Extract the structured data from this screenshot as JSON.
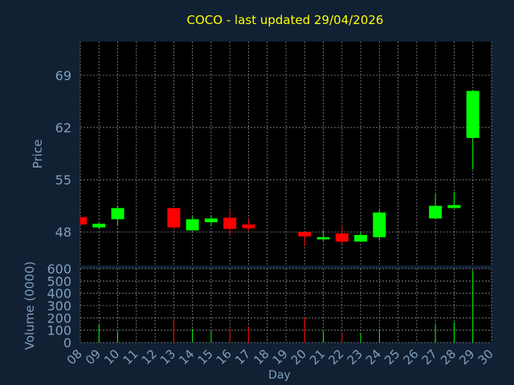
{
  "colors": {
    "background": "#112033",
    "plot_background": "#000000",
    "grid": "#8a8a8a",
    "axis_text": "#7f9fc0",
    "title": "#ffff00",
    "up": "#00ff00",
    "down": "#ff0000"
  },
  "chart_data": [
    {
      "type": "candlestick",
      "title": "COCO - last updated 29/04/2026",
      "ylabel": "Price",
      "ylim": [
        43.5,
        73.5
      ],
      "yticks": [
        48,
        55,
        62,
        69
      ],
      "x_categories": [
        "08",
        "09",
        "10",
        "11",
        "12",
        "13",
        "14",
        "15",
        "16",
        "17",
        "18",
        "19",
        "20",
        "21",
        "22",
        "23",
        "24",
        "25",
        "26",
        "27",
        "28",
        "29",
        "30"
      ],
      "candles": [
        {
          "day": "08",
          "open": 50.0,
          "high": 50.0,
          "low": 49.0,
          "close": 49.0
        },
        {
          "day": "09",
          "open": 48.6,
          "high": 49.2,
          "low": 48.4,
          "close": 49.1
        },
        {
          "day": "10",
          "open": 49.7,
          "high": 51.5,
          "low": 48.9,
          "close": 51.2
        },
        {
          "day": "13",
          "open": 51.2,
          "high": 51.2,
          "low": 48.3,
          "close": 48.6
        },
        {
          "day": "14",
          "open": 48.2,
          "high": 50.1,
          "low": 48.2,
          "close": 49.7
        },
        {
          "day": "15",
          "open": 49.3,
          "high": 50.2,
          "low": 48.8,
          "close": 49.8
        },
        {
          "day": "16",
          "open": 49.9,
          "high": 50.9,
          "low": 47.6,
          "close": 48.4
        },
        {
          "day": "17",
          "open": 49.0,
          "high": 49.7,
          "low": 48.2,
          "close": 48.5
        },
        {
          "day": "20",
          "open": 48.0,
          "high": 48.0,
          "low": 46.1,
          "close": 47.4
        },
        {
          "day": "21",
          "open": 47.0,
          "high": 48.2,
          "low": 46.8,
          "close": 47.3
        },
        {
          "day": "22",
          "open": 47.8,
          "high": 48.9,
          "low": 46.4,
          "close": 46.7
        },
        {
          "day": "23",
          "open": 46.7,
          "high": 48.0,
          "low": 46.7,
          "close": 47.6
        },
        {
          "day": "24",
          "open": 47.3,
          "high": 50.9,
          "low": 46.9,
          "close": 50.6
        },
        {
          "day": "27",
          "open": 49.8,
          "high": 53.1,
          "low": 49.8,
          "close": 51.5
        },
        {
          "day": "28",
          "open": 51.2,
          "high": 53.4,
          "low": 51.2,
          "close": 51.6
        },
        {
          "day": "29",
          "open": 60.6,
          "high": 67.0,
          "low": 56.4,
          "close": 66.9
        }
      ]
    },
    {
      "type": "bar",
      "ylabel": "Volume (0000)",
      "xlabel": "Day",
      "ylim": [
        0,
        600
      ],
      "yticks": [
        0,
        100,
        200,
        300,
        400,
        500,
        600
      ],
      "x_categories": [
        "08",
        "09",
        "10",
        "11",
        "12",
        "13",
        "14",
        "15",
        "16",
        "17",
        "18",
        "19",
        "20",
        "21",
        "22",
        "23",
        "24",
        "25",
        "26",
        "27",
        "28",
        "29",
        "30"
      ],
      "volumes": [
        {
          "day": "09",
          "value": 145,
          "direction": "up"
        },
        {
          "day": "10",
          "value": 90,
          "direction": "up"
        },
        {
          "day": "13",
          "value": 190,
          "direction": "down"
        },
        {
          "day": "14",
          "value": 110,
          "direction": "up"
        },
        {
          "day": "15",
          "value": 95,
          "direction": "up"
        },
        {
          "day": "16",
          "value": 110,
          "direction": "down"
        },
        {
          "day": "17",
          "value": 125,
          "direction": "down"
        },
        {
          "day": "20",
          "value": 205,
          "direction": "down"
        },
        {
          "day": "21",
          "value": 90,
          "direction": "up"
        },
        {
          "day": "22",
          "value": 85,
          "direction": "down"
        },
        {
          "day": "23",
          "value": 80,
          "direction": "up"
        },
        {
          "day": "24",
          "value": 110,
          "direction": "up"
        },
        {
          "day": "27",
          "value": 145,
          "direction": "up"
        },
        {
          "day": "28",
          "value": 165,
          "direction": "up"
        },
        {
          "day": "29",
          "value": 585,
          "direction": "up"
        }
      ]
    }
  ]
}
